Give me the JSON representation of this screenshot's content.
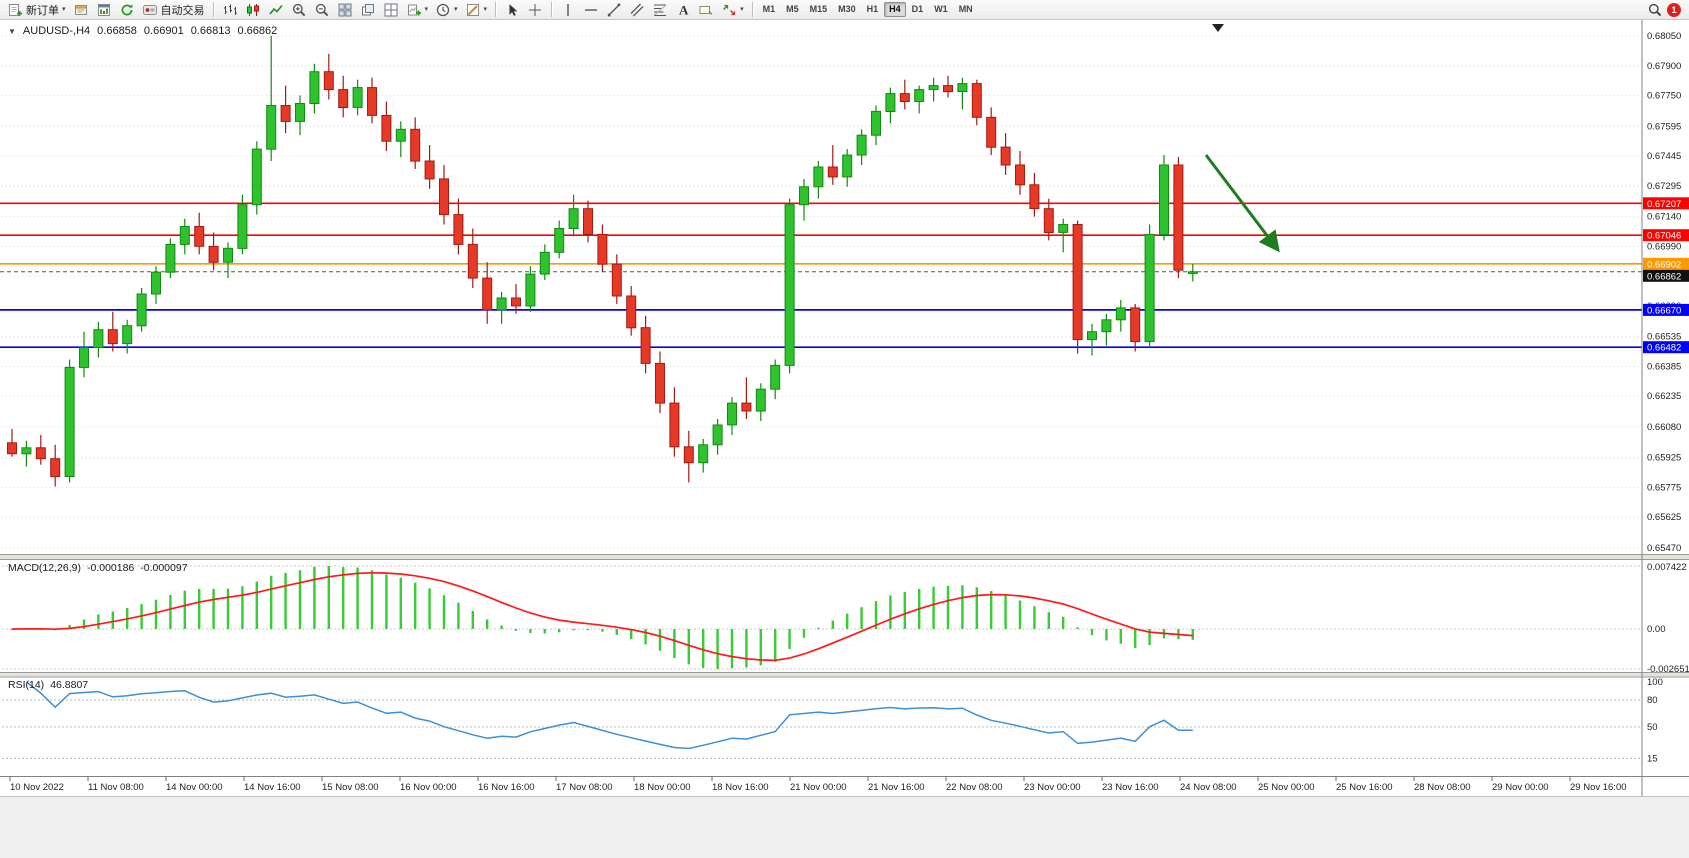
{
  "icons": {
    "caret": "▾",
    "collapse_triangle": "▼"
  },
  "toolbar": {
    "new_order_label": "新订单",
    "auto_trading_label": "自动交易",
    "timeframes": [
      "M1",
      "M5",
      "M15",
      "M30",
      "H1",
      "H4",
      "D1",
      "W1",
      "MN"
    ],
    "active_timeframe": "H4",
    "notification_count": "1"
  },
  "chart": {
    "symbol_period": "AUDUSD-,H4",
    "open": "0.66858",
    "high": "0.66901",
    "low": "0.66813",
    "close": "0.66862"
  },
  "indicators": {
    "macd": {
      "label": "MACD(12,26,9)",
      "main_value": "-0.000186",
      "signal_value": "-0.000097",
      "axis_labels": [
        "0.007422",
        "0.00",
        "-0.002651"
      ]
    },
    "rsi": {
      "label": "RSI(14)",
      "value": "46.8807",
      "level_labels": [
        "100",
        "80",
        "50",
        "15"
      ]
    }
  },
  "chart_data": [
    {
      "type": "candlestick",
      "symbol": "AUDUSD-",
      "period": "H4",
      "colors": {
        "bull": "#2ec22e",
        "bull_border": "#128a12",
        "bear": "#e63928",
        "bear_border": "#a01c0f"
      },
      "price_axis_labels": [
        "0.68050",
        "0.67900",
        "0.67750",
        "0.67595",
        "0.67445",
        "0.67295",
        "0.67140",
        "0.66990",
        "0.66840",
        "0.66690",
        "0.66535",
        "0.66385",
        "0.66235",
        "0.66080",
        "0.65925",
        "0.65775",
        "0.65625",
        "0.65470"
      ],
      "time_labels": [
        "10 Nov 2022",
        "11 Nov 08:00",
        "14 Nov 00:00",
        "14 Nov 16:00",
        "15 Nov 08:00",
        "16 Nov 00:00",
        "16 Nov 16:00",
        "17 Nov 08:00",
        "18 Nov 00:00",
        "18 Nov 16:00",
        "21 Nov 00:00",
        "21 Nov 16:00",
        "22 Nov 08:00",
        "23 Nov 00:00",
        "23 Nov 16:00",
        "24 Nov 08:00",
        "25 Nov 00:00",
        "25 Nov 16:00",
        "28 Nov 08:00",
        "29 Nov 00:00",
        "29 Nov 16:00"
      ],
      "horizontal_lines": [
        {
          "price": 0.67207,
          "label": "0.67207",
          "color": "#ff0000"
        },
        {
          "price": 0.67046,
          "label": "0.67046",
          "color": "#ff0000"
        },
        {
          "price": 0.66902,
          "label": "0.66902",
          "color": "#ff9900"
        },
        {
          "price": 0.6667,
          "label": "0.66670",
          "color": "#0000ff"
        },
        {
          "price": 0.66482,
          "label": "0.66482",
          "color": "#0000ff"
        }
      ],
      "current_price": {
        "value": 0.66862,
        "label": "0.66862",
        "color": "#111111"
      },
      "annotations": [
        {
          "type": "arrow",
          "direction": "down-right",
          "color": "#1e7d1e"
        }
      ],
      "ohlc": [
        [
          0.66,
          0.6607,
          0.6593,
          0.65945
        ],
        [
          0.65945,
          0.6601,
          0.6588,
          0.65975
        ],
        [
          0.65975,
          0.6604,
          0.6589,
          0.6592
        ],
        [
          0.6592,
          0.6599,
          0.6578,
          0.6583
        ],
        [
          0.6583,
          0.6642,
          0.658,
          0.6638
        ],
        [
          0.6638,
          0.6656,
          0.6633,
          0.6648
        ],
        [
          0.6648,
          0.6661,
          0.6643,
          0.6657
        ],
        [
          0.6657,
          0.6666,
          0.6646,
          0.665
        ],
        [
          0.665,
          0.6662,
          0.6645,
          0.6659
        ],
        [
          0.6659,
          0.6678,
          0.6656,
          0.6675
        ],
        [
          0.6675,
          0.6689,
          0.667,
          0.6686
        ],
        [
          0.6686,
          0.6703,
          0.6683,
          0.67
        ],
        [
          0.67,
          0.6713,
          0.6695,
          0.6709
        ],
        [
          0.6709,
          0.6716,
          0.6695,
          0.6699
        ],
        [
          0.6699,
          0.6706,
          0.6687,
          0.6691
        ],
        [
          0.6691,
          0.6701,
          0.6683,
          0.6698
        ],
        [
          0.6698,
          0.6725,
          0.6695,
          0.672
        ],
        [
          0.672,
          0.6752,
          0.6715,
          0.6748
        ],
        [
          0.6748,
          0.6805,
          0.6742,
          0.677
        ],
        [
          0.677,
          0.678,
          0.6756,
          0.6762
        ],
        [
          0.6762,
          0.6775,
          0.6755,
          0.6771
        ],
        [
          0.6771,
          0.6791,
          0.6766,
          0.6787
        ],
        [
          0.6787,
          0.6796,
          0.6773,
          0.6778
        ],
        [
          0.6778,
          0.6785,
          0.6764,
          0.6769
        ],
        [
          0.6769,
          0.6783,
          0.6765,
          0.6779
        ],
        [
          0.6779,
          0.6784,
          0.6761,
          0.6765
        ],
        [
          0.6765,
          0.6772,
          0.6747,
          0.6752
        ],
        [
          0.6752,
          0.6762,
          0.6744,
          0.6758
        ],
        [
          0.6758,
          0.6764,
          0.6738,
          0.6742
        ],
        [
          0.6742,
          0.675,
          0.6728,
          0.6733
        ],
        [
          0.6733,
          0.674,
          0.671,
          0.6715
        ],
        [
          0.6715,
          0.6723,
          0.6695,
          0.67
        ],
        [
          0.67,
          0.6708,
          0.6678,
          0.6683
        ],
        [
          0.6683,
          0.6691,
          0.666,
          0.6667
        ],
        [
          0.6667,
          0.6676,
          0.666,
          0.6673
        ],
        [
          0.6673,
          0.668,
          0.6665,
          0.6669
        ],
        [
          0.6669,
          0.6689,
          0.6666,
          0.6685
        ],
        [
          0.6685,
          0.67,
          0.6682,
          0.6696
        ],
        [
          0.6696,
          0.6712,
          0.6693,
          0.6708
        ],
        [
          0.6708,
          0.6725,
          0.6704,
          0.6718
        ],
        [
          0.6718,
          0.6722,
          0.6701,
          0.6705
        ],
        [
          0.6705,
          0.671,
          0.6686,
          0.669
        ],
        [
          0.669,
          0.6695,
          0.667,
          0.6674
        ],
        [
          0.6674,
          0.6679,
          0.6654,
          0.6658
        ],
        [
          0.6658,
          0.6664,
          0.6635,
          0.664
        ],
        [
          0.664,
          0.6646,
          0.6615,
          0.662
        ],
        [
          0.662,
          0.6628,
          0.6593,
          0.6598
        ],
        [
          0.6598,
          0.6606,
          0.658,
          0.659
        ],
        [
          0.659,
          0.6602,
          0.6585,
          0.6599
        ],
        [
          0.6599,
          0.6612,
          0.6594,
          0.6609
        ],
        [
          0.6609,
          0.6623,
          0.6604,
          0.662
        ],
        [
          0.662,
          0.6633,
          0.6612,
          0.6616
        ],
        [
          0.6616,
          0.663,
          0.6611,
          0.6627
        ],
        [
          0.6627,
          0.6642,
          0.6622,
          0.6639
        ],
        [
          0.6639,
          0.6723,
          0.6635,
          0.672
        ],
        [
          0.672,
          0.6733,
          0.6712,
          0.6729
        ],
        [
          0.6729,
          0.6742,
          0.6723,
          0.6739
        ],
        [
          0.6739,
          0.675,
          0.673,
          0.6734
        ],
        [
          0.6734,
          0.6748,
          0.6729,
          0.6745
        ],
        [
          0.6745,
          0.6758,
          0.674,
          0.6755
        ],
        [
          0.6755,
          0.677,
          0.675,
          0.6767
        ],
        [
          0.6767,
          0.6779,
          0.6761,
          0.6776
        ],
        [
          0.6776,
          0.6783,
          0.6768,
          0.6772
        ],
        [
          0.6772,
          0.678,
          0.6766,
          0.6778
        ],
        [
          0.6778,
          0.6784,
          0.6772,
          0.678
        ],
        [
          0.678,
          0.6785,
          0.6774,
          0.6777
        ],
        [
          0.6777,
          0.6784,
          0.6768,
          0.6781
        ],
        [
          0.6781,
          0.6783,
          0.676,
          0.6764
        ],
        [
          0.6764,
          0.6769,
          0.6745,
          0.6749
        ],
        [
          0.6749,
          0.6756,
          0.6735,
          0.674
        ],
        [
          0.674,
          0.6747,
          0.6725,
          0.673
        ],
        [
          0.673,
          0.6736,
          0.6714,
          0.6718
        ],
        [
          0.6718,
          0.6723,
          0.6702,
          0.6706
        ],
        [
          0.6706,
          0.6713,
          0.6696,
          0.671
        ],
        [
          0.671,
          0.6712,
          0.6645,
          0.6652
        ],
        [
          0.6652,
          0.666,
          0.6644,
          0.6656
        ],
        [
          0.6656,
          0.6665,
          0.6649,
          0.6662
        ],
        [
          0.6662,
          0.6672,
          0.6656,
          0.6668
        ],
        [
          0.6668,
          0.667,
          0.6646,
          0.6651
        ],
        [
          0.6651,
          0.671,
          0.6648,
          0.6705
        ],
        [
          0.6705,
          0.6745,
          0.6702,
          0.674
        ],
        [
          0.674,
          0.6744,
          0.6683,
          0.6687
        ],
        [
          0.66858,
          0.66901,
          0.66813,
          0.66862
        ]
      ]
    },
    {
      "type": "macd-histogram",
      "label": "MACD(12,26,9)",
      "params": [
        12,
        26,
        9
      ],
      "displayed_values": [
        "-0.000186",
        "-0.000097"
      ],
      "axis_labels": [
        "0.007422",
        "0.00",
        "-0.002651"
      ],
      "colors": {
        "histogram": "#35cc35",
        "signal": "#ff1a1a"
      }
    },
    {
      "type": "rsi-line",
      "label": "RSI(14)",
      "period": 14,
      "displayed_value": "46.8807",
      "levels": [
        100,
        80,
        50,
        15
      ],
      "color": "#3c8fd4"
    }
  ]
}
